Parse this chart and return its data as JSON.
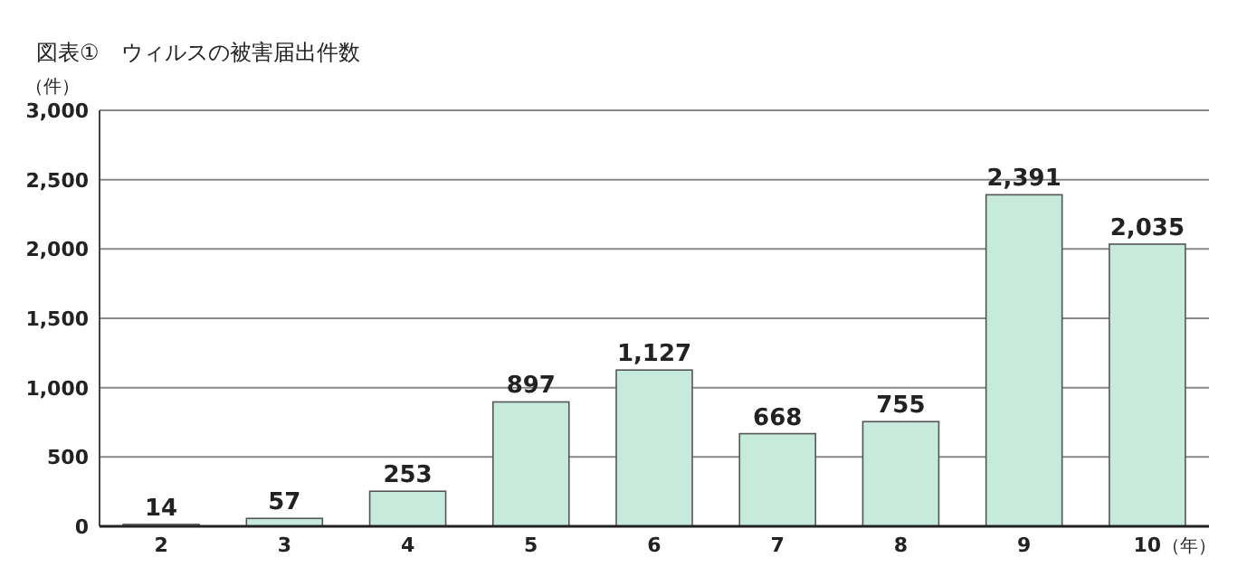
{
  "chart_data": {
    "type": "bar",
    "title": "図表①　ウィルスの被害届出件数",
    "ylabel": "（件）",
    "xlabel": "（年）",
    "categories": [
      "2",
      "3",
      "4",
      "5",
      "6",
      "7",
      "8",
      "9",
      "10"
    ],
    "values": [
      14,
      57,
      253,
      897,
      1127,
      668,
      755,
      2391,
      2035
    ],
    "color": "#c6eadb",
    "value_labels": [
      "14",
      "57",
      "253",
      "897",
      "1,127",
      "668",
      "755",
      "2,391",
      "2,035"
    ],
    "grid": "y",
    "ylim": [
      0,
      3000
    ],
    "yticks": [
      0,
      {
        "value": 500,
        "label": "500"
      },
      {
        "value": 1000,
        "label": "1,000"
      },
      {
        "value": 1500,
        "label": "1,500"
      },
      {
        "value": 2000,
        "label": "2,000"
      },
      {
        "value": 2500,
        "label": "2,500"
      },
      {
        "value": 3000,
        "label": "3,000"
      }
    ]
  }
}
